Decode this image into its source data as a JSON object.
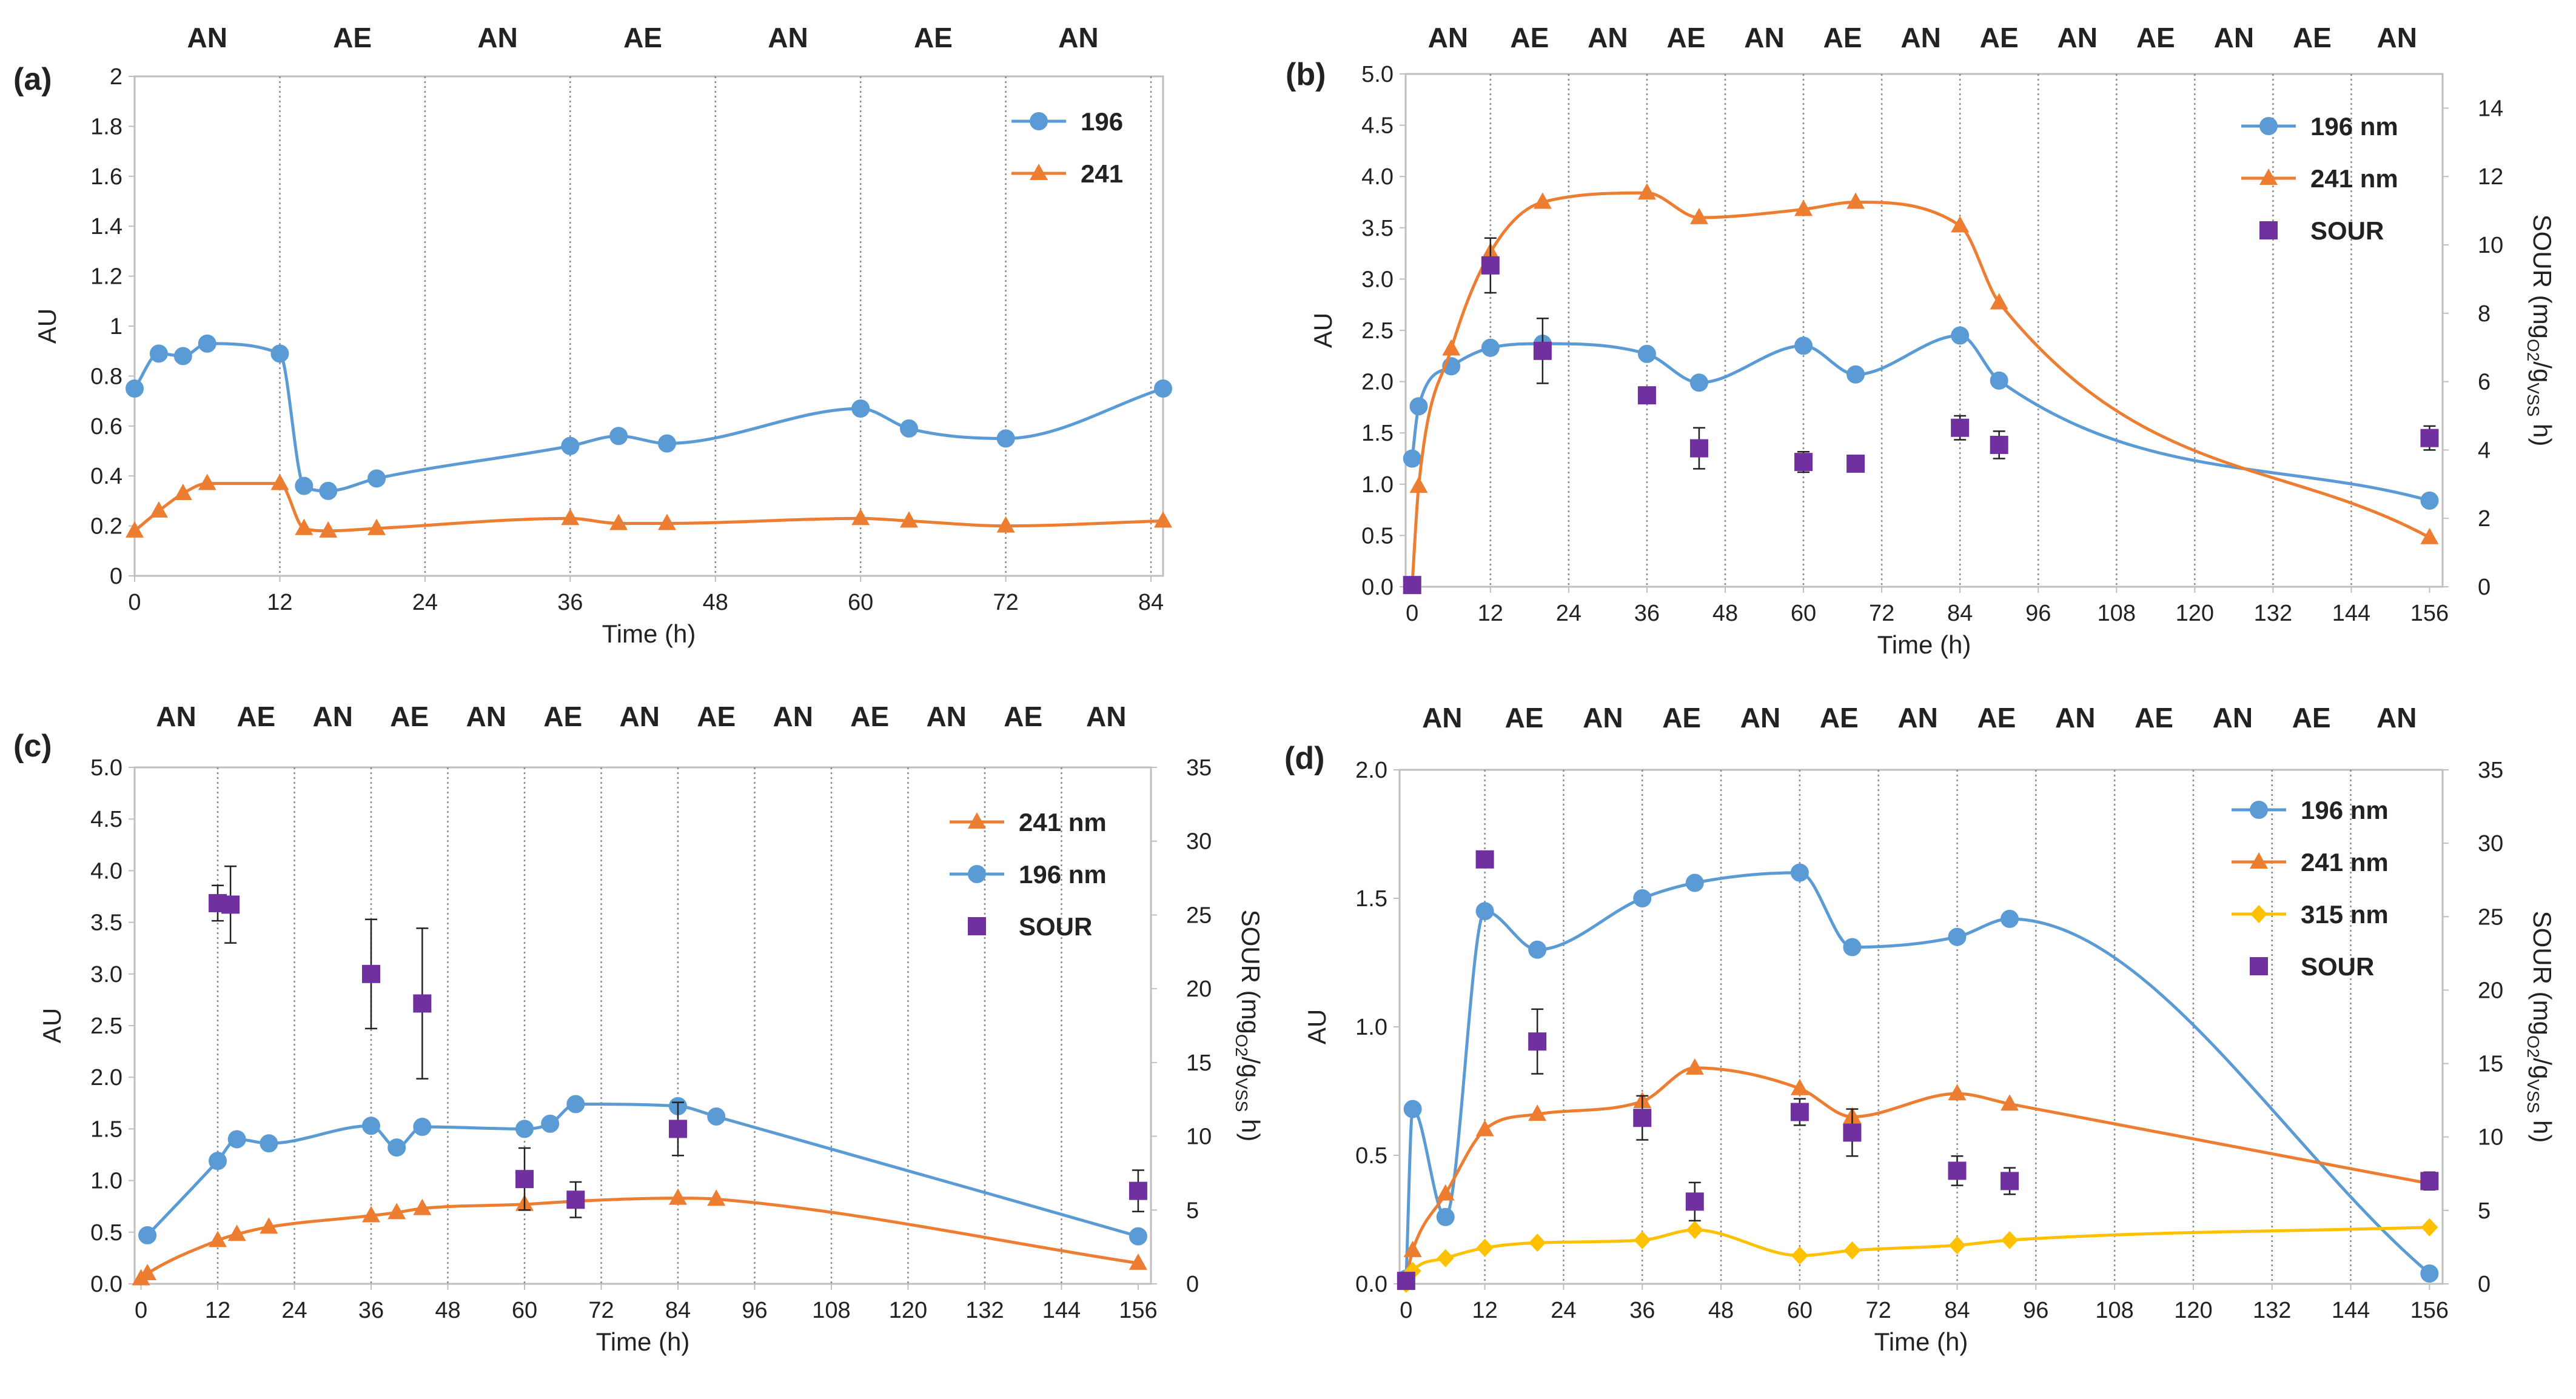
{
  "colors": {
    "196": "#5B9BD5",
    "241": "#ED7D31",
    "315": "#FFC000",
    "SOUR": "#7030A0",
    "divider": "#8c8c8c",
    "frame": "#bfbfbf"
  },
  "chart_data": [
    {
      "type": "line",
      "panel": "(a)",
      "xlabel": "Time (h)",
      "ylabel": "AU",
      "xlim": [
        0,
        85
      ],
      "ylim": [
        0,
        2
      ],
      "xticks": [
        "0",
        "12",
        "24",
        "36",
        "48",
        "60",
        "72",
        "84"
      ],
      "yticks": [
        "0",
        "0.2",
        "0.4",
        "0.6",
        "0.8",
        "1",
        "1.2",
        "1.4",
        "1.6",
        "1.8",
        "2"
      ],
      "phases": [
        "AN",
        "AE",
        "AN",
        "AE",
        "AN",
        "AE",
        "AN"
      ],
      "phase_boundaries": [
        12,
        24,
        36,
        48,
        60,
        72,
        84
      ],
      "series": [
        {
          "name": "196",
          "color_key": "196",
          "marker": "circle",
          "x": [
            0,
            2,
            4,
            6,
            12,
            14,
            16,
            20,
            36,
            40,
            44,
            60,
            64,
            72,
            85
          ],
          "y": [
            0.75,
            0.89,
            0.88,
            0.93,
            0.89,
            0.36,
            0.34,
            0.39,
            0.52,
            0.56,
            0.53,
            0.67,
            0.59,
            0.55,
            0.75
          ]
        },
        {
          "name": "241",
          "color_key": "241",
          "marker": "triangle",
          "x": [
            0,
            2,
            4,
            6,
            12,
            14,
            16,
            20,
            36,
            40,
            44,
            60,
            64,
            72,
            85
          ],
          "y": [
            0.18,
            0.26,
            0.33,
            0.37,
            0.37,
            0.19,
            0.18,
            0.19,
            0.23,
            0.21,
            0.21,
            0.23,
            0.22,
            0.2,
            0.22
          ]
        }
      ]
    },
    {
      "type": "line",
      "panel": "(b)",
      "xlabel": "Time (h)",
      "ylabel": "AU",
      "y2label_pre": "SOUR (mg",
      "y2label_sub1": "O2",
      "y2label_mid": "/g",
      "y2label_sub2": "VSS",
      "y2label_post": " h)",
      "xlim": [
        -1,
        158
      ],
      "ylim": [
        0,
        5
      ],
      "y2lim": [
        0,
        15
      ],
      "xticks": [
        "0",
        "12",
        "24",
        "36",
        "48",
        "60",
        "72",
        "84",
        "96",
        "108",
        "120",
        "132",
        "144",
        "156"
      ],
      "yticks": [
        "0.0",
        "0.5",
        "1.0",
        "1.5",
        "2.0",
        "2.5",
        "3.0",
        "3.5",
        "4.0",
        "4.5",
        "5.0"
      ],
      "y2ticks": [
        "0",
        "2",
        "4",
        "6",
        "8",
        "10",
        "12",
        "14"
      ],
      "phases": [
        "AN",
        "AE",
        "AN",
        "AE",
        "AN",
        "AE",
        "AN",
        "AE",
        "AN",
        "AE",
        "AN",
        "AE",
        "AN"
      ],
      "phase_boundaries": [
        12,
        24,
        36,
        48,
        60,
        72,
        84,
        96,
        108,
        120,
        132,
        144
      ],
      "series": [
        {
          "name": "196 nm",
          "color_key": "196",
          "marker": "circle",
          "x": [
            0,
            1,
            6,
            12,
            20,
            36,
            44,
            60,
            68,
            84,
            90,
            156
          ],
          "y": [
            1.25,
            1.76,
            2.15,
            2.33,
            2.37,
            2.27,
            1.99,
            2.35,
            2.07,
            2.45,
            2.01,
            0.84
          ]
        },
        {
          "name": "241 nm",
          "color_key": "241",
          "marker": "triangle",
          "x": [
            0,
            1,
            6,
            12,
            20,
            36,
            44,
            60,
            68,
            84,
            90,
            156
          ],
          "y": [
            0.02,
            0.98,
            2.32,
            3.26,
            3.75,
            3.84,
            3.6,
            3.68,
            3.75,
            3.52,
            2.77,
            0.48
          ]
        },
        {
          "name": "SOUR",
          "color_key": "SOUR",
          "marker": "square",
          "axis": "right",
          "x": [
            0,
            12,
            20,
            36,
            44,
            60,
            68,
            84,
            90,
            156
          ],
          "y": [
            0.05,
            9.4,
            6.9,
            5.6,
            4.05,
            3.65,
            3.6,
            4.65,
            4.15,
            4.35
          ],
          "err": [
            0,
            0.8,
            0.95,
            0,
            0.6,
            0.3,
            0,
            0.35,
            0.4,
            0.35
          ]
        }
      ]
    },
    {
      "type": "line",
      "panel": "(c)",
      "xlabel": "Time (h)",
      "ylabel": "AU",
      "y2label_pre": "SOUR (mg",
      "y2label_sub1": "O2",
      "y2label_mid": "/g",
      "y2label_sub2": "VSS",
      "y2label_post": " h)",
      "xlim": [
        -1,
        158
      ],
      "ylim": [
        0,
        5
      ],
      "y2lim": [
        0,
        35
      ],
      "xticks": [
        "0",
        "12",
        "24",
        "36",
        "48",
        "60",
        "72",
        "84",
        "96",
        "108",
        "120",
        "132",
        "144",
        "156"
      ],
      "yticks": [
        "0.0",
        "0.5",
        "1.0",
        "1.5",
        "2.0",
        "2.5",
        "3.0",
        "3.5",
        "4.0",
        "4.5",
        "5.0"
      ],
      "y2ticks": [
        "0",
        "5",
        "10",
        "15",
        "20",
        "25",
        "30",
        "35"
      ],
      "phases": [
        "AN",
        "AE",
        "AN",
        "AE",
        "AN",
        "AE",
        "AN",
        "AE",
        "AN",
        "AE",
        "AN",
        "AE",
        "AN"
      ],
      "phase_boundaries": [
        12,
        24,
        36,
        48,
        60,
        72,
        84,
        96,
        108,
        120,
        132,
        144
      ],
      "series": [
        {
          "name": "241 nm",
          "color_key": "241",
          "marker": "triangle",
          "x": [
            0,
            1,
            12,
            15,
            20,
            36,
            40,
            44,
            60,
            68,
            84,
            90,
            156
          ],
          "y": [
            0.05,
            0.1,
            0.42,
            0.48,
            0.55,
            0.66,
            0.69,
            0.73,
            0.77,
            0.8,
            0.83,
            0.82,
            0.2
          ]
        },
        {
          "name": "196 nm",
          "color_key": "196",
          "marker": "circle",
          "x": [
            1,
            12,
            15,
            20,
            36,
            40,
            44,
            60,
            64,
            68,
            84,
            90,
            156
          ],
          "y": [
            0.47,
            1.19,
            1.4,
            1.36,
            1.53,
            1.32,
            1.52,
            1.5,
            1.55,
            1.74,
            1.72,
            1.62,
            0.46
          ]
        },
        {
          "name": "SOUR",
          "color_key": "SOUR",
          "marker": "square",
          "axis": "right",
          "x": [
            12,
            14,
            36,
            44,
            60,
            68,
            84,
            156
          ],
          "y": [
            25.8,
            25.7,
            21,
            19,
            7.1,
            5.7,
            10.5,
            6.3
          ],
          "err": [
            1.2,
            2.6,
            3.7,
            5.1,
            2.1,
            1.2,
            1.8,
            1.4
          ]
        }
      ]
    },
    {
      "type": "line",
      "panel": "(d)",
      "xlabel": "Time (h)",
      "ylabel": "AU",
      "y2label_pre": "SOUR (mg",
      "y2label_sub1": "O2",
      "y2label_mid": "/g",
      "y2label_sub2": "VSS",
      "y2label_post": " h)",
      "xlim": [
        -1,
        158
      ],
      "ylim": [
        0,
        2
      ],
      "y2lim": [
        0,
        35
      ],
      "xticks": [
        "0",
        "12",
        "24",
        "36",
        "48",
        "60",
        "72",
        "84",
        "96",
        "108",
        "120",
        "132",
        "144",
        "156"
      ],
      "yticks": [
        "0.0",
        "0.5",
        "1.0",
        "1.5",
        "2.0"
      ],
      "y2ticks": [
        "0",
        "5",
        "10",
        "15",
        "20",
        "25",
        "30",
        "35"
      ],
      "phases": [
        "AN",
        "AE",
        "AN",
        "AE",
        "AN",
        "AE",
        "AN",
        "AE",
        "AN",
        "AE",
        "AN",
        "AE",
        "AN"
      ],
      "phase_boundaries": [
        12,
        24,
        36,
        48,
        60,
        72,
        84,
        96,
        108,
        120,
        132,
        144
      ],
      "series": [
        {
          "name": "196 nm",
          "color_key": "196",
          "marker": "circle",
          "x": [
            0,
            1,
            6,
            12,
            20,
            36,
            44,
            60,
            68,
            84,
            92,
            156
          ],
          "y": [
            0.02,
            0.68,
            0.26,
            1.45,
            1.3,
            1.5,
            1.56,
            1.6,
            1.31,
            1.35,
            1.42,
            0.04
          ]
        },
        {
          "name": "241 nm",
          "color_key": "241",
          "marker": "triangle",
          "x": [
            0,
            1,
            6,
            12,
            20,
            36,
            44,
            60,
            68,
            84,
            92,
            156
          ],
          "y": [
            0.02,
            0.13,
            0.35,
            0.6,
            0.66,
            0.71,
            0.84,
            0.76,
            0.65,
            0.74,
            0.7,
            0.39
          ]
        },
        {
          "name": "315 nm",
          "color_key": "315",
          "marker": "diamond",
          "x": [
            0,
            1,
            6,
            12,
            20,
            36,
            44,
            60,
            68,
            84,
            92,
            156
          ],
          "y": [
            0.0,
            0.05,
            0.1,
            0.14,
            0.16,
            0.17,
            0.21,
            0.11,
            0.13,
            0.15,
            0.17,
            0.22
          ]
        },
        {
          "name": "SOUR",
          "color_key": "SOUR",
          "marker": "square",
          "axis": "right",
          "x": [
            0,
            12,
            20,
            36,
            44,
            60,
            68,
            84,
            92,
            156
          ],
          "y": [
            0.2,
            28.9,
            16.5,
            11.3,
            5.6,
            11.7,
            10.3,
            7.7,
            7,
            7
          ],
          "err": [
            0,
            0,
            2.2,
            1.5,
            1.3,
            0.9,
            1.6,
            1,
            0.9,
            0.6
          ]
        }
      ]
    }
  ]
}
